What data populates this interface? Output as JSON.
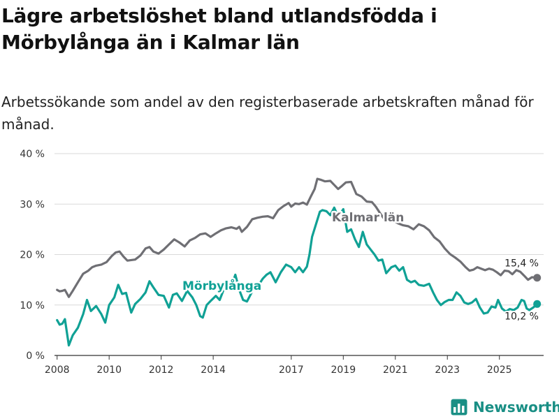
{
  "title": "Lägre arbetslöshet bland utlandsfödda i Mörbylånga än i Kalmar län",
  "subtitle": "Arbetssökande som andel av den registerbaserade arbetskraften månad för månad.",
  "brand": "Newsworthy",
  "colors": {
    "kalmar": "#6f6f74",
    "morbylanga": "#10a195",
    "grid": "#d9d9d9",
    "axis": "#333333",
    "brand": "#1a8f85"
  },
  "chart_data": {
    "type": "line",
    "title": "Lägre arbetslöshet bland utlandsfödda i Mörbylånga än i Kalmar län",
    "xlabel": "",
    "ylabel": "",
    "xlim": [
      2007.9,
      2026.7
    ],
    "ylim": [
      0,
      40
    ],
    "y_ticks": [
      0,
      10,
      20,
      30,
      40
    ],
    "y_tick_labels": [
      "0 %",
      "10 %",
      "20 %",
      "30 %",
      "40 %"
    ],
    "x_ticks": [
      2008,
      2010,
      2012,
      2014,
      2017,
      2019,
      2021,
      2023,
      2025
    ],
    "x_tick_labels": [
      "2008",
      "2010",
      "2012",
      "2014",
      "2017",
      "2019",
      "2021",
      "2023",
      "2025"
    ],
    "grid": true,
    "series": [
      {
        "name": "Kalmar län",
        "label": "Kalmar län",
        "end_label": "15,4 %",
        "color": "#6f6f74",
        "points": [
          [
            2008.0,
            13.0
          ],
          [
            2008.1,
            12.7
          ],
          [
            2008.2,
            12.8
          ],
          [
            2008.3,
            13.0
          ],
          [
            2008.45,
            11.6
          ],
          [
            2008.6,
            12.8
          ],
          [
            2008.8,
            14.5
          ],
          [
            2009.0,
            16.2
          ],
          [
            2009.2,
            16.8
          ],
          [
            2009.35,
            17.5
          ],
          [
            2009.5,
            17.8
          ],
          [
            2009.7,
            18.0
          ],
          [
            2009.9,
            18.5
          ],
          [
            2010.1,
            19.7
          ],
          [
            2010.25,
            20.4
          ],
          [
            2010.4,
            20.6
          ],
          [
            2010.55,
            19.6
          ],
          [
            2010.7,
            18.8
          ],
          [
            2010.85,
            18.9
          ],
          [
            2011.0,
            19.0
          ],
          [
            2011.2,
            19.8
          ],
          [
            2011.4,
            21.2
          ],
          [
            2011.55,
            21.5
          ],
          [
            2011.7,
            20.6
          ],
          [
            2011.9,
            20.2
          ],
          [
            2012.1,
            21.0
          ],
          [
            2012.3,
            22.0
          ],
          [
            2012.5,
            23.0
          ],
          [
            2012.7,
            22.4
          ],
          [
            2012.9,
            21.6
          ],
          [
            2013.1,
            22.8
          ],
          [
            2013.3,
            23.3
          ],
          [
            2013.5,
            24.0
          ],
          [
            2013.7,
            24.2
          ],
          [
            2013.9,
            23.5
          ],
          [
            2014.1,
            24.2
          ],
          [
            2014.3,
            24.8
          ],
          [
            2014.5,
            25.2
          ],
          [
            2014.7,
            25.4
          ],
          [
            2014.9,
            25.1
          ],
          [
            2015.0,
            25.5
          ],
          [
            2015.1,
            24.5
          ],
          [
            2015.3,
            25.5
          ],
          [
            2015.5,
            27.0
          ],
          [
            2015.7,
            27.3
          ],
          [
            2015.9,
            27.5
          ],
          [
            2016.1,
            27.6
          ],
          [
            2016.3,
            27.2
          ],
          [
            2016.5,
            28.8
          ],
          [
            2016.7,
            29.6
          ],
          [
            2016.9,
            30.2
          ],
          [
            2017.0,
            29.5
          ],
          [
            2017.15,
            30.1
          ],
          [
            2017.3,
            30.0
          ],
          [
            2017.45,
            30.3
          ],
          [
            2017.6,
            29.9
          ],
          [
            2017.75,
            31.5
          ],
          [
            2017.9,
            33.0
          ],
          [
            2018.0,
            35.0
          ],
          [
            2018.15,
            34.8
          ],
          [
            2018.3,
            34.5
          ],
          [
            2018.5,
            34.6
          ],
          [
            2018.65,
            33.8
          ],
          [
            2018.8,
            33.0
          ],
          [
            2018.95,
            33.6
          ],
          [
            2019.1,
            34.3
          ],
          [
            2019.3,
            34.4
          ],
          [
            2019.5,
            32.0
          ],
          [
            2019.7,
            31.5
          ],
          [
            2019.9,
            30.5
          ],
          [
            2020.1,
            30.4
          ],
          [
            2020.25,
            29.5
          ],
          [
            2020.4,
            28.3
          ],
          [
            2020.55,
            27.2
          ],
          [
            2020.7,
            27.6
          ],
          [
            2020.9,
            26.8
          ],
          [
            2021.1,
            26.2
          ],
          [
            2021.3,
            25.8
          ],
          [
            2021.5,
            25.6
          ],
          [
            2021.7,
            25.0
          ],
          [
            2021.9,
            26.0
          ],
          [
            2022.1,
            25.6
          ],
          [
            2022.3,
            24.8
          ],
          [
            2022.5,
            23.4
          ],
          [
            2022.7,
            22.6
          ],
          [
            2022.9,
            21.2
          ],
          [
            2023.1,
            20.1
          ],
          [
            2023.3,
            19.4
          ],
          [
            2023.5,
            18.6
          ],
          [
            2023.7,
            17.5
          ],
          [
            2023.85,
            16.8
          ],
          [
            2024.0,
            17.0
          ],
          [
            2024.15,
            17.5
          ],
          [
            2024.3,
            17.2
          ],
          [
            2024.45,
            16.9
          ],
          [
            2024.6,
            17.2
          ],
          [
            2024.75,
            17.0
          ],
          [
            2024.9,
            16.5
          ],
          [
            2025.05,
            15.9
          ],
          [
            2025.2,
            16.8
          ],
          [
            2025.35,
            16.7
          ],
          [
            2025.5,
            16.1
          ],
          [
            2025.65,
            16.9
          ],
          [
            2025.8,
            16.6
          ],
          [
            2025.95,
            15.8
          ],
          [
            2026.1,
            15.0
          ],
          [
            2026.25,
            15.5
          ],
          [
            2026.45,
            15.4
          ]
        ]
      },
      {
        "name": "Mörbylånga",
        "label": "Mörbylånga",
        "end_label": "10,2 %",
        "color": "#10a195",
        "points": [
          [
            2008.0,
            7.0
          ],
          [
            2008.1,
            6.1
          ],
          [
            2008.2,
            6.3
          ],
          [
            2008.3,
            7.2
          ],
          [
            2008.45,
            2.0
          ],
          [
            2008.6,
            4.0
          ],
          [
            2008.8,
            5.5
          ],
          [
            2009.0,
            8.2
          ],
          [
            2009.15,
            11.0
          ],
          [
            2009.3,
            8.8
          ],
          [
            2009.5,
            9.8
          ],
          [
            2009.7,
            8.2
          ],
          [
            2009.85,
            6.5
          ],
          [
            2010.0,
            10.0
          ],
          [
            2010.2,
            11.5
          ],
          [
            2010.35,
            14.0
          ],
          [
            2010.5,
            12.2
          ],
          [
            2010.65,
            12.4
          ],
          [
            2010.85,
            8.5
          ],
          [
            2011.0,
            10.2
          ],
          [
            2011.2,
            11.2
          ],
          [
            2011.4,
            12.5
          ],
          [
            2011.55,
            14.7
          ],
          [
            2011.7,
            13.5
          ],
          [
            2011.9,
            12.0
          ],
          [
            2012.1,
            11.8
          ],
          [
            2012.3,
            9.5
          ],
          [
            2012.45,
            12.0
          ],
          [
            2012.6,
            12.3
          ],
          [
            2012.8,
            10.8
          ],
          [
            2013.0,
            12.8
          ],
          [
            2013.2,
            11.5
          ],
          [
            2013.35,
            10.0
          ],
          [
            2013.5,
            7.8
          ],
          [
            2013.6,
            7.5
          ],
          [
            2013.75,
            10.0
          ],
          [
            2013.9,
            10.8
          ],
          [
            2014.1,
            11.8
          ],
          [
            2014.25,
            11.0
          ],
          [
            2014.4,
            13.0
          ],
          [
            2014.55,
            14.5
          ],
          [
            2014.7,
            13.8
          ],
          [
            2014.85,
            16.0
          ],
          [
            2015.0,
            13.0
          ],
          [
            2015.15,
            11.0
          ],
          [
            2015.3,
            10.7
          ],
          [
            2015.45,
            12.2
          ],
          [
            2015.6,
            13.8
          ],
          [
            2015.75,
            14.0
          ],
          [
            2015.9,
            15.2
          ],
          [
            2016.05,
            16.0
          ],
          [
            2016.2,
            16.5
          ],
          [
            2016.4,
            14.5
          ],
          [
            2016.6,
            16.5
          ],
          [
            2016.8,
            18.0
          ],
          [
            2017.0,
            17.5
          ],
          [
            2017.15,
            16.5
          ],
          [
            2017.3,
            17.5
          ],
          [
            2017.45,
            16.5
          ],
          [
            2017.6,
            17.6
          ],
          [
            2017.7,
            20.0
          ],
          [
            2017.8,
            23.5
          ],
          [
            2017.95,
            26.0
          ],
          [
            2018.1,
            28.5
          ],
          [
            2018.2,
            28.8
          ],
          [
            2018.35,
            28.6
          ],
          [
            2018.5,
            27.8
          ],
          [
            2018.65,
            29.3
          ],
          [
            2018.8,
            27.5
          ],
          [
            2018.9,
            28.2
          ],
          [
            2019.0,
            29.0
          ],
          [
            2019.15,
            24.5
          ],
          [
            2019.3,
            25.0
          ],
          [
            2019.45,
            23.0
          ],
          [
            2019.6,
            21.5
          ],
          [
            2019.75,
            24.5
          ],
          [
            2019.9,
            22.0
          ],
          [
            2020.05,
            21.0
          ],
          [
            2020.2,
            20.0
          ],
          [
            2020.35,
            18.8
          ],
          [
            2020.5,
            19.0
          ],
          [
            2020.65,
            16.3
          ],
          [
            2020.85,
            17.5
          ],
          [
            2021.0,
            17.8
          ],
          [
            2021.15,
            16.8
          ],
          [
            2021.3,
            17.5
          ],
          [
            2021.45,
            15.0
          ],
          [
            2021.6,
            14.5
          ],
          [
            2021.75,
            14.8
          ],
          [
            2021.9,
            14.0
          ],
          [
            2022.1,
            13.8
          ],
          [
            2022.3,
            14.2
          ],
          [
            2022.45,
            12.5
          ],
          [
            2022.6,
            11.0
          ],
          [
            2022.75,
            10.0
          ],
          [
            2022.9,
            10.6
          ],
          [
            2023.05,
            11.0
          ],
          [
            2023.2,
            11.0
          ],
          [
            2023.35,
            12.5
          ],
          [
            2023.5,
            11.8
          ],
          [
            2023.65,
            10.5
          ],
          [
            2023.8,
            10.2
          ],
          [
            2023.95,
            10.5
          ],
          [
            2024.1,
            11.2
          ],
          [
            2024.25,
            9.5
          ],
          [
            2024.4,
            8.3
          ],
          [
            2024.55,
            8.5
          ],
          [
            2024.7,
            9.7
          ],
          [
            2024.85,
            9.5
          ],
          [
            2024.95,
            11.0
          ],
          [
            2025.1,
            9.3
          ],
          [
            2025.25,
            8.7
          ],
          [
            2025.4,
            9.2
          ],
          [
            2025.55,
            9.0
          ],
          [
            2025.7,
            9.5
          ],
          [
            2025.85,
            11.0
          ],
          [
            2025.95,
            10.8
          ],
          [
            2026.05,
            9.3
          ],
          [
            2026.15,
            9.0
          ],
          [
            2026.3,
            9.5
          ],
          [
            2026.45,
            10.2
          ]
        ]
      }
    ]
  }
}
